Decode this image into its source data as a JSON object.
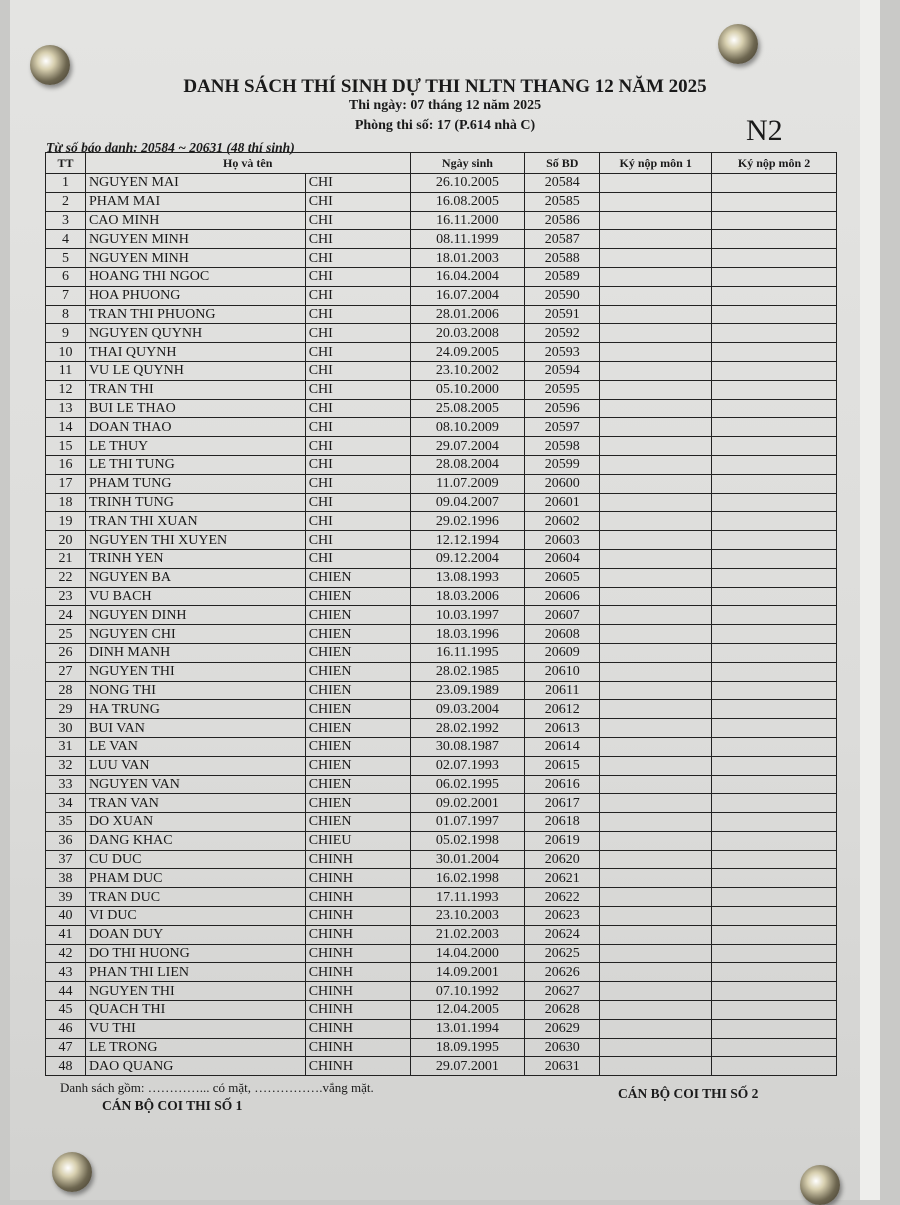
{
  "title": "DANH SÁCH THÍ SINH DỰ THI NLTN THANG 12 NĂM 2025",
  "exam_date": "Thi ngày: 07 tháng 12 năm 2025",
  "room": "Phòng thi số: 17 (P.614 nhà C)",
  "group": "N2",
  "range": "Từ số báo danh: 20584 ~ 20631 (48 thí sinh)",
  "headers": {
    "tt": "TT",
    "name": "Họ và tên",
    "dob": "Ngày sinh",
    "sbd": "Số BD",
    "sign1": "Ký nộp môn 1",
    "sign2": "Ký nộp môn 2"
  },
  "rows": [
    [
      "1",
      "NGUYEN MAI",
      "CHI",
      "26.10.2005",
      "20584"
    ],
    [
      "2",
      "PHAM MAI",
      "CHI",
      "16.08.2005",
      "20585"
    ],
    [
      "3",
      "CAO MINH",
      "CHI",
      "16.11.2000",
      "20586"
    ],
    [
      "4",
      "NGUYEN MINH",
      "CHI",
      "08.11.1999",
      "20587"
    ],
    [
      "5",
      "NGUYEN MINH",
      "CHI",
      "18.01.2003",
      "20588"
    ],
    [
      "6",
      "HOANG THI NGOC",
      "CHI",
      "16.04.2004",
      "20589"
    ],
    [
      "7",
      "HOA PHUONG",
      "CHI",
      "16.07.2004",
      "20590"
    ],
    [
      "8",
      "TRAN THI PHUONG",
      "CHI",
      "28.01.2006",
      "20591"
    ],
    [
      "9",
      "NGUYEN QUYNH",
      "CHI",
      "20.03.2008",
      "20592"
    ],
    [
      "10",
      "THAI QUYNH",
      "CHI",
      "24.09.2005",
      "20593"
    ],
    [
      "11",
      "VU LE QUYNH",
      "CHI",
      "23.10.2002",
      "20594"
    ],
    [
      "12",
      "TRAN THI",
      "CHI",
      "05.10.2000",
      "20595"
    ],
    [
      "13",
      "BUI LE THAO",
      "CHI",
      "25.08.2005",
      "20596"
    ],
    [
      "14",
      "DOAN THAO",
      "CHI",
      "08.10.2009",
      "20597"
    ],
    [
      "15",
      "LE THUY",
      "CHI",
      "29.07.2004",
      "20598"
    ],
    [
      "16",
      "LE THI TUNG",
      "CHI",
      "28.08.2004",
      "20599"
    ],
    [
      "17",
      "PHAM TUNG",
      "CHI",
      "11.07.2009",
      "20600"
    ],
    [
      "18",
      "TRINH TUNG",
      "CHI",
      "09.04.2007",
      "20601"
    ],
    [
      "19",
      "TRAN THI XUAN",
      "CHI",
      "29.02.1996",
      "20602"
    ],
    [
      "20",
      "NGUYEN THI XUYEN",
      "CHI",
      "12.12.1994",
      "20603"
    ],
    [
      "21",
      "TRINH YEN",
      "CHI",
      "09.12.2004",
      "20604"
    ],
    [
      "22",
      "NGUYEN BA",
      "CHIEN",
      "13.08.1993",
      "20605"
    ],
    [
      "23",
      "VU BACH",
      "CHIEN",
      "18.03.2006",
      "20606"
    ],
    [
      "24",
      "NGUYEN DINH",
      "CHIEN",
      "10.03.1997",
      "20607"
    ],
    [
      "25",
      "NGUYEN CHI",
      "CHIEN",
      "18.03.1996",
      "20608"
    ],
    [
      "26",
      "DINH MANH",
      "CHIEN",
      "16.11.1995",
      "20609"
    ],
    [
      "27",
      "NGUYEN THI",
      "CHIEN",
      "28.02.1985",
      "20610"
    ],
    [
      "28",
      "NONG THI",
      "CHIEN",
      "23.09.1989",
      "20611"
    ],
    [
      "29",
      "HA TRUNG",
      "CHIEN",
      "09.03.2004",
      "20612"
    ],
    [
      "30",
      "BUI VAN",
      "CHIEN",
      "28.02.1992",
      "20613"
    ],
    [
      "31",
      "LE VAN",
      "CHIEN",
      "30.08.1987",
      "20614"
    ],
    [
      "32",
      "LUU VAN",
      "CHIEN",
      "02.07.1993",
      "20615"
    ],
    [
      "33",
      "NGUYEN VAN",
      "CHIEN",
      "06.02.1995",
      "20616"
    ],
    [
      "34",
      "TRAN VAN",
      "CHIEN",
      "09.02.2001",
      "20617"
    ],
    [
      "35",
      "DO XUAN",
      "CHIEN",
      "01.07.1997",
      "20618"
    ],
    [
      "36",
      "DANG KHAC",
      "CHIEU",
      "05.02.1998",
      "20619"
    ],
    [
      "37",
      "CU DUC",
      "CHINH",
      "30.01.2004",
      "20620"
    ],
    [
      "38",
      "PHAM DUC",
      "CHINH",
      "16.02.1998",
      "20621"
    ],
    [
      "39",
      "TRAN DUC",
      "CHINH",
      "17.11.1993",
      "20622"
    ],
    [
      "40",
      "VI DUC",
      "CHINH",
      "23.10.2003",
      "20623"
    ],
    [
      "41",
      "DOAN DUY",
      "CHINH",
      "21.02.2003",
      "20624"
    ],
    [
      "42",
      "DO THI HUONG",
      "CHINH",
      "14.04.2000",
      "20625"
    ],
    [
      "43",
      "PHAN THI LIEN",
      "CHINH",
      "14.09.2001",
      "20626"
    ],
    [
      "44",
      "NGUYEN THI",
      "CHINH",
      "07.10.1992",
      "20627"
    ],
    [
      "45",
      "QUACH THI",
      "CHINH",
      "12.04.2005",
      "20628"
    ],
    [
      "46",
      "VU THI",
      "CHINH",
      "13.01.1994",
      "20629"
    ],
    [
      "47",
      "LE TRONG",
      "CHINH",
      "18.09.1995",
      "20630"
    ],
    [
      "48",
      "DAO QUANG",
      "CHINH",
      "29.07.2001",
      "20631"
    ]
  ],
  "footer": "Danh sách gồm: …………... có mặt,    …………….vắng mặt.",
  "signer1": "CÁN BỘ COI THI SỐ 1",
  "signer2": "CÁN BỘ COI THI SỐ 2"
}
